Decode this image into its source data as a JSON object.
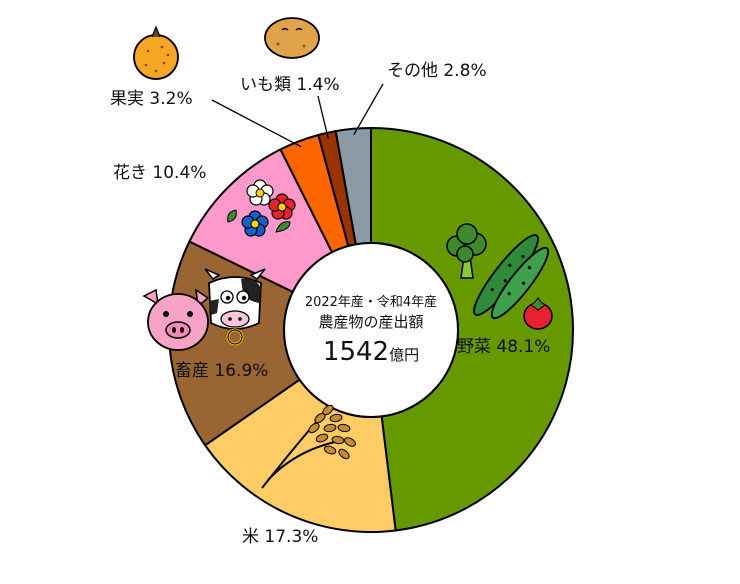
{
  "chart_data": {
    "type": "pie",
    "donut": true,
    "unit": "%",
    "direction": "clockwise",
    "start": "12 o'clock",
    "categories": [
      "野菜",
      "米",
      "畜産",
      "花き",
      "果実",
      "いも類",
      "その他"
    ],
    "values": [
      48.1,
      17.3,
      16.9,
      10.4,
      3.2,
      1.4,
      2.8
    ],
    "labels": [
      "野菜 48.1%",
      "米 17.3%",
      "畜産 16.9%",
      "花き 10.4%",
      "果実 3.2%",
      "いも類 1.4%",
      "その他 2.8%"
    ],
    "colors": [
      "#669900",
      "#ffcc66",
      "#996633",
      "#ff99cc",
      "#ff6600",
      "#993300",
      "#8c9aa8"
    ],
    "center": {
      "line1": "2022年産・令和4年産",
      "line2": "農産物の産出額",
      "amount": "1542",
      "unit": "億円"
    }
  },
  "illustrations": [
    "broccoli-icon",
    "cucumber-icon",
    "tomato-icon",
    "rice-plant-icon",
    "pig-icon",
    "cow-icon",
    "flowers-icon",
    "pear-icon",
    "potato-icon"
  ]
}
